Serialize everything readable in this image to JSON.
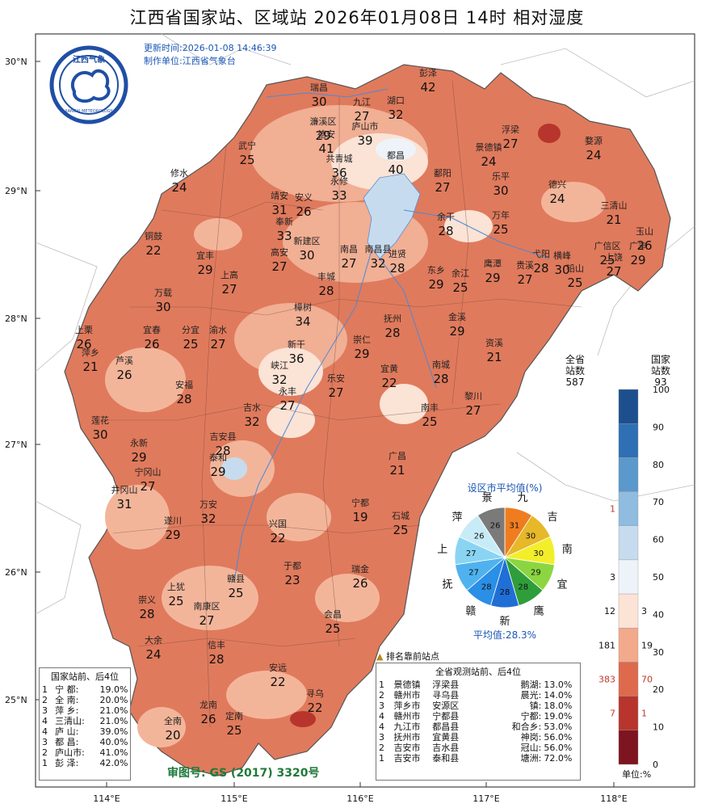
{
  "title": "江西省国家站、区域站    2026年01月08日  14时    相对湿度",
  "update_time": "更新时间:2026-01-08 14:46:39",
  "producer": "制作单位:江西省气象台",
  "logo_text": {
    "top": "江西气象",
    "bottom": "JIANGXI METEOROLOGY"
  },
  "axis": {
    "lat_labels": [
      "30°N",
      "29°N",
      "28°N",
      "27°N",
      "26°N",
      "25°N"
    ],
    "lon_labels": [
      "114°E",
      "115°E",
      "116°E",
      "117°E",
      "118°E"
    ]
  },
  "map_labels": [
    {
      "name": "彭泽",
      "value": "42"
    },
    {
      "name": "瑞昌",
      "value": "30"
    },
    {
      "name": "九江",
      "value": "27"
    },
    {
      "name": "湖口",
      "value": "32"
    },
    {
      "name": "濂溪区",
      "value": "29"
    },
    {
      "name": "庐山市",
      "value": "39"
    },
    {
      "name": "浮梁",
      "value": "27"
    },
    {
      "name": "德安",
      "value": "41"
    },
    {
      "name": "景德镇",
      "value": "24"
    },
    {
      "name": "婺源",
      "value": "24"
    },
    {
      "name": "武宁",
      "value": "25"
    },
    {
      "name": "共青城",
      "value": "36"
    },
    {
      "name": "都昌",
      "value": "40"
    },
    {
      "name": "修水",
      "value": "24"
    },
    {
      "name": "永修",
      "value": "33"
    },
    {
      "name": "鄱阳",
      "value": "27"
    },
    {
      "name": "乐平",
      "value": "30"
    },
    {
      "name": "德兴",
      "value": "24"
    },
    {
      "name": "靖安",
      "value": "31"
    },
    {
      "name": "安义",
      "value": "26"
    },
    {
      "name": "三清山",
      "value": "21"
    },
    {
      "name": "奉新",
      "value": "33"
    },
    {
      "name": "余干",
      "value": "28"
    },
    {
      "name": "万年",
      "value": "25"
    },
    {
      "name": "玉山",
      "value": "26"
    },
    {
      "name": "铜鼓",
      "value": "22"
    },
    {
      "name": "南昌",
      "value": "27"
    },
    {
      "name": "新建区",
      "value": "30"
    },
    {
      "name": "南昌县",
      "value": "32"
    },
    {
      "name": "广信区",
      "value": "25"
    },
    {
      "name": "高安",
      "value": "27"
    },
    {
      "name": "宜丰",
      "value": "29"
    },
    {
      "name": "进贤",
      "value": "28"
    },
    {
      "name": "弋阳",
      "value": "28"
    },
    {
      "name": "横峰",
      "value": "30"
    },
    {
      "name": "上饶",
      "value": "27"
    },
    {
      "name": "广丰",
      "value": "29"
    },
    {
      "name": "上高",
      "value": "27"
    },
    {
      "name": "丰城",
      "value": "28"
    },
    {
      "name": "东乡",
      "value": "29"
    },
    {
      "name": "余江",
      "value": "25"
    },
    {
      "name": "鹰潭",
      "value": "29"
    },
    {
      "name": "贵溪",
      "value": "27"
    },
    {
      "name": "铅山",
      "value": "25"
    },
    {
      "name": "万载",
      "value": "30"
    },
    {
      "name": "樟树",
      "value": "34"
    },
    {
      "name": "抚州",
      "value": "28"
    },
    {
      "name": "金溪",
      "value": "29"
    },
    {
      "name": "上栗",
      "value": "26"
    },
    {
      "name": "宜春",
      "value": "26"
    },
    {
      "name": "分宜",
      "value": "25"
    },
    {
      "name": "渝水",
      "value": "27"
    },
    {
      "name": "崇仁",
      "value": "29"
    },
    {
      "name": "资溪",
      "value": "21"
    },
    {
      "name": "萍乡",
      "value": "21"
    },
    {
      "name": "芦溪",
      "value": "26"
    },
    {
      "name": "新干",
      "value": "36"
    },
    {
      "name": "峡江",
      "value": "32"
    },
    {
      "name": "宜黄",
      "value": "22"
    },
    {
      "name": "南城",
      "value": "28"
    },
    {
      "name": "安福",
      "value": "28"
    },
    {
      "name": "乐安",
      "value": "27"
    },
    {
      "name": "永丰",
      "value": "27"
    },
    {
      "name": "黎川",
      "value": "27"
    },
    {
      "name": "吉水",
      "value": "32"
    },
    {
      "name": "南丰",
      "value": "25"
    },
    {
      "name": "莲花",
      "value": "30"
    },
    {
      "name": "吉安县",
      "value": "28"
    },
    {
      "name": "永新",
      "value": "29"
    },
    {
      "name": "泰和",
      "value": "29"
    },
    {
      "name": "广昌",
      "value": "21"
    },
    {
      "name": "井冈山",
      "value": "31"
    },
    {
      "name": "宁冈山",
      "value": "27"
    },
    {
      "name": "万安",
      "value": "32"
    },
    {
      "name": "宁都",
      "value": "19"
    },
    {
      "name": "石城",
      "value": "25"
    },
    {
      "name": "遂川",
      "value": "29"
    },
    {
      "name": "兴国",
      "value": "22"
    },
    {
      "name": "于都",
      "value": "23"
    },
    {
      "name": "瑞金",
      "value": "26"
    },
    {
      "name": "上犹",
      "value": "25"
    },
    {
      "name": "赣县",
      "value": "25"
    },
    {
      "name": "崇义",
      "value": "28"
    },
    {
      "name": "南康区",
      "value": "27"
    },
    {
      "name": "会昌",
      "value": "25"
    },
    {
      "name": "大余",
      "value": "24"
    },
    {
      "name": "信丰",
      "value": "28"
    },
    {
      "name": "安远",
      "value": "22"
    },
    {
      "name": "寻乌",
      "value": "22"
    },
    {
      "name": "龙南",
      "value": "26"
    },
    {
      "name": "全南",
      "value": "20"
    },
    {
      "name": "定南",
      "value": "25"
    }
  ],
  "color_legend": {
    "provincial_header": "全省\n站数",
    "provincial_total": "587",
    "national_header": "国家\n站数",
    "national_total": "93",
    "ticks": [
      "100",
      "90",
      "80",
      "70",
      "60",
      "50",
      "40",
      "30",
      "20",
      "10",
      "0"
    ],
    "bands": [
      {
        "range": "90-100",
        "color": "#1d4f8f",
        "prov": "",
        "nat": ""
      },
      {
        "range": "80-90",
        "color": "#2f6fb3",
        "prov": "",
        "nat": ""
      },
      {
        "range": "70-80",
        "color": "#5b98cc",
        "prov": "",
        "nat": ""
      },
      {
        "range": "60-70",
        "color": "#8fbcdf",
        "prov": "1",
        "nat": ""
      },
      {
        "range": "50-60",
        "color": "#c6dcee",
        "prov": "",
        "nat": ""
      },
      {
        "range": "40-50",
        "color": "#eef3f9",
        "prov": "3",
        "nat": ""
      },
      {
        "range": "30-40",
        "color": "#fbe3d6",
        "prov": "12",
        "nat": "3"
      },
      {
        "range": "20-30",
        "color": "#f2a98c",
        "prov": "181",
        "nat": "19"
      },
      {
        "range": "10-20",
        "color": "#dd6a4c",
        "prov": "383",
        "nat": "70"
      },
      {
        "range": "0-10",
        "color": "#b7352c",
        "prov": "7",
        "nat": "1"
      },
      {
        "range": "<0",
        "color": "#7d1420",
        "prov": "",
        "nat": ""
      }
    ],
    "unit": "单位:%"
  },
  "pie": {
    "title": "设区市平均值(%)",
    "average": "平均值:28.3%",
    "slices": [
      {
        "name": "九",
        "value": "31",
        "color": "#ef7d1f"
      },
      {
        "name": "吉",
        "value": "30",
        "color": "#e6b82a"
      },
      {
        "name": "南",
        "value": "30",
        "color": "#f3ee2a"
      },
      {
        "name": "宜",
        "value": "29",
        "color": "#8bd640"
      },
      {
        "name": "鹰",
        "value": "28",
        "color": "#2f9e3a"
      },
      {
        "name": "新",
        "value": "28",
        "color": "#1f6fd6"
      },
      {
        "name": "赣",
        "value": "28",
        "color": "#2a8fe6"
      },
      {
        "name": "抚",
        "value": "27",
        "color": "#4fb2ef"
      },
      {
        "name": "上",
        "value": "27",
        "color": "#8ad4f3"
      },
      {
        "name": "萍",
        "value": "26",
        "color": "#c8ecf7"
      },
      {
        "name": "景",
        "value": "26",
        "color": "#7a7a7a"
      }
    ]
  },
  "national_rank": {
    "title": "国家站前、后4位",
    "rows": [
      {
        "rank": "1",
        "name": "宁  都:",
        "value": "19.0%"
      },
      {
        "rank": "2",
        "name": "全  南:",
        "value": "20.0%"
      },
      {
        "rank": "3",
        "name": "萍  乡:",
        "value": "21.0%"
      },
      {
        "rank": "4",
        "name": "三清山:",
        "value": "21.0%"
      },
      {
        "rank": "4",
        "name": "庐  山:",
        "value": "39.0%"
      },
      {
        "rank": "3",
        "name": "都  昌:",
        "value": "40.0%"
      },
      {
        "rank": "2",
        "name": "庐山市:",
        "value": "41.0%"
      },
      {
        "rank": "1",
        "name": "彭  泽:",
        "value": "42.0%"
      }
    ]
  },
  "all_rank": {
    "title": "全省观测站前、后4位",
    "rows": [
      {
        "rank": "1",
        "city": "景德镇",
        "county": "浮梁县",
        "station": "鹅湖:",
        "value": "13.0%"
      },
      {
        "rank": "2",
        "city": "赣州市",
        "county": "寻乌县",
        "station": "晨光:",
        "value": "14.0%"
      },
      {
        "rank": "3",
        "city": "萍乡市",
        "county": "安源区",
        "station": "镇:",
        "value": "18.0%"
      },
      {
        "rank": "4",
        "city": "赣州市",
        "county": "宁都县",
        "station": "宁都:",
        "value": "19.0%"
      },
      {
        "rank": "4",
        "city": "九江市",
        "county": "都昌县",
        "station": "和合乡:",
        "value": "53.0%"
      },
      {
        "rank": "3",
        "city": "抚州市",
        "county": "宜黄县",
        "station": "神岗:",
        "value": "56.0%"
      },
      {
        "rank": "2",
        "city": "吉安市",
        "county": "吉水县",
        "station": "冠山:",
        "value": "56.0%"
      },
      {
        "rank": "1",
        "city": "吉安市",
        "county": "泰和县",
        "station": "塘洲:",
        "value": "72.0%"
      }
    ]
  },
  "rank_note": "排名靠前站点",
  "audit_no": "审图号: GS (2017) 3320号"
}
